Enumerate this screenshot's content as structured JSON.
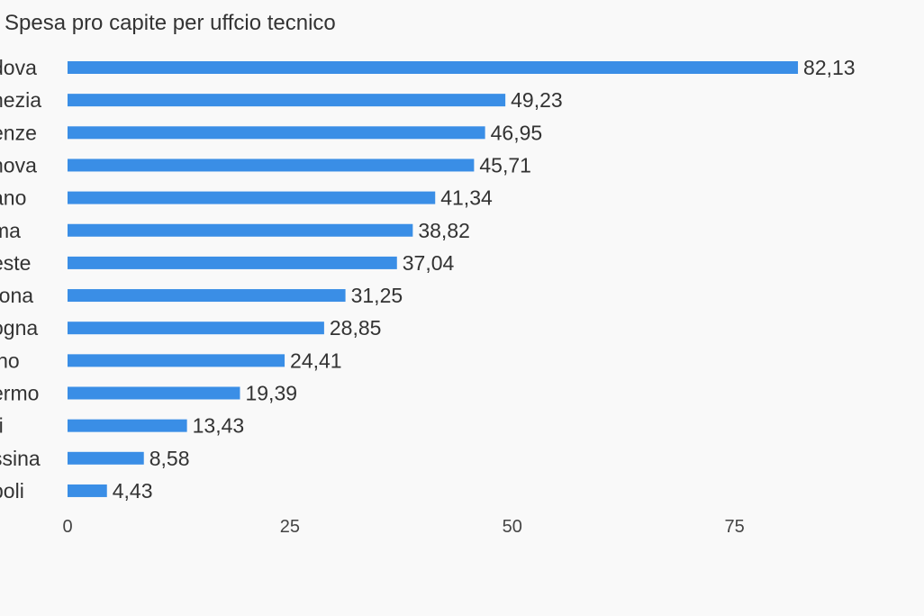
{
  "chart_data": {
    "type": "bar",
    "orientation": "horizontal",
    "title": "Spesa pro capite per uffcio tecnico",
    "xlabel": "",
    "ylabel": "",
    "categories": [
      "dova",
      "nezia",
      "enze",
      "nova",
      "ano",
      "ma",
      "este",
      "rona",
      "ogna",
      "ino",
      "ermo",
      "ri",
      "ssina",
      "poli"
    ],
    "values": [
      82.13,
      49.23,
      46.95,
      45.71,
      41.34,
      38.82,
      37.04,
      31.25,
      28.85,
      24.41,
      19.39,
      13.43,
      8.58,
      4.43
    ],
    "value_labels": [
      "82,13",
      "49,23",
      "46,95",
      "45,71",
      "41,34",
      "38,82",
      "37,04",
      "31,25",
      "28,85",
      "24,41",
      "19,39",
      "13,43",
      "8,58",
      "4,43"
    ],
    "xticks": [
      0,
      25,
      50,
      75
    ],
    "xtick_labels": [
      "0",
      "25",
      "50",
      "75"
    ],
    "xlim": [
      0,
      95
    ],
    "grid": false,
    "legend": "none",
    "bar_color": "#3a8ee6"
  }
}
